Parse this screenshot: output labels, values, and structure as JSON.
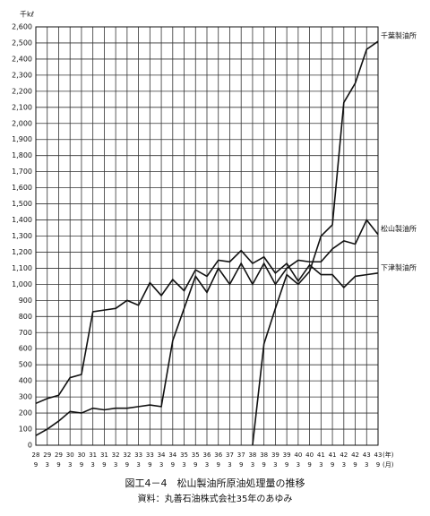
{
  "chart_data": {
    "type": "line",
    "title": "図工4－4　松山製油所原油処理量の推移",
    "source": "資料：丸善石油株式会社35年のあゆみ",
    "y_unit": "千kℓ",
    "x_year_unit": "(年)",
    "x_month_unit": "(月)",
    "categories": [
      "28",
      "29",
      "29",
      "30",
      "30",
      "31",
      "31",
      "32",
      "32",
      "33",
      "33",
      "34",
      "34",
      "35",
      "35",
      "36",
      "36",
      "37",
      "37",
      "38",
      "38",
      "39",
      "39",
      "40",
      "40",
      "41",
      "41",
      "42",
      "42",
      "43",
      "43"
    ],
    "months": [
      "9",
      "3",
      "9",
      "3",
      "9",
      "3",
      "9",
      "3",
      "9",
      "3",
      "9",
      "3",
      "9",
      "3",
      "9",
      "3",
      "9",
      "3",
      "9",
      "3",
      "9",
      "3",
      "9",
      "3",
      "9",
      "3",
      "9",
      "3",
      "9",
      "3",
      "9"
    ],
    "series": [
      {
        "name": "千葉製油所",
        "color": "#111111",
        "values": [
          null,
          null,
          null,
          null,
          null,
          null,
          null,
          null,
          null,
          null,
          null,
          null,
          null,
          null,
          null,
          null,
          null,
          null,
          null,
          0,
          630,
          850,
          1060,
          1000,
          1080,
          1300,
          1370,
          2130,
          2250,
          2460,
          2510
        ]
      },
      {
        "name": "松山製油所",
        "color": "#111111",
        "values": [
          60,
          100,
          150,
          210,
          200,
          230,
          220,
          230,
          230,
          240,
          250,
          240,
          650,
          850,
          1050,
          950,
          1100,
          1000,
          1130,
          1000,
          1130,
          1000,
          1100,
          1150,
          1140,
          1140,
          1220,
          1270,
          1250,
          1400,
          1310
        ]
      },
      {
        "name": "下津製油所",
        "color": "#111111",
        "values": [
          260,
          290,
          310,
          420,
          440,
          830,
          840,
          850,
          900,
          870,
          1010,
          930,
          1030,
          960,
          1090,
          1050,
          1150,
          1140,
          1210,
          1130,
          1170,
          1070,
          1130,
          1020,
          1120,
          1060,
          1060,
          980,
          1050,
          1060,
          1070
        ]
      }
    ],
    "ylim": [
      0,
      2600
    ],
    "yticks": [
      0,
      100,
      200,
      300,
      400,
      500,
      600,
      700,
      800,
      900,
      {
        "value": 1000,
        "label": "1,000"
      },
      {
        "value": 1100,
        "label": "1,100"
      },
      {
        "value": 1200,
        "label": "1,200"
      },
      {
        "value": 1300,
        "label": "1,300"
      },
      {
        "value": 1400,
        "label": "1,400"
      },
      {
        "value": 1500,
        "label": "1,500"
      },
      {
        "value": 1600,
        "label": "1,600"
      },
      {
        "value": 1700,
        "label": "1,700"
      },
      {
        "value": 1800,
        "label": "1,800"
      },
      {
        "value": 1900,
        "label": "1,900"
      },
      {
        "value": 2000,
        "label": "2,000"
      },
      {
        "value": 2100,
        "label": "2,100"
      },
      {
        "value": 2200,
        "label": "2,200"
      },
      {
        "value": 2300,
        "label": "2,300"
      },
      {
        "value": 2400,
        "label": "2,400"
      },
      {
        "value": 2500,
        "label": "2,500"
      },
      {
        "value": 2600,
        "label": "2,600"
      }
    ],
    "grid": true
  }
}
